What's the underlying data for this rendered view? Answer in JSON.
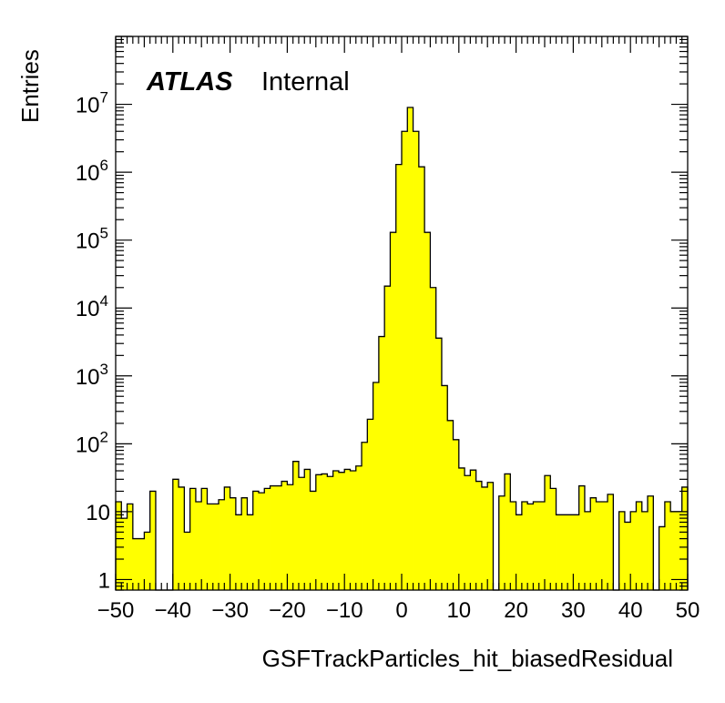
{
  "chart_data": {
    "type": "bar",
    "style": "histogram-step",
    "fill_color": "#ffff00",
    "line_color": "#000000",
    "x_range": [
      -50,
      50
    ],
    "y_range": [
      0.7,
      100000000
    ],
    "y_log": true,
    "bin_width": 1,
    "bins": [
      {
        "x": -50,
        "v": 14
      },
      {
        "x": -49,
        "v": 8
      },
      {
        "x": -48,
        "v": 13
      },
      {
        "x": -47,
        "v": 4
      },
      {
        "x": -46,
        "v": 4
      },
      {
        "x": -45,
        "v": 5
      },
      {
        "x": -44,
        "v": 20
      },
      {
        "x": -43,
        "v": 0
      },
      {
        "x": -42,
        "v": 0
      },
      {
        "x": -41,
        "v": 0
      },
      {
        "x": -40,
        "v": 30
      },
      {
        "x": -39,
        "v": 23
      },
      {
        "x": -38,
        "v": 5
      },
      {
        "x": -37,
        "v": 22
      },
      {
        "x": -36,
        "v": 14
      },
      {
        "x": -35,
        "v": 22
      },
      {
        "x": -34,
        "v": 13
      },
      {
        "x": -33,
        "v": 13
      },
      {
        "x": -32,
        "v": 15
      },
      {
        "x": -31,
        "v": 23
      },
      {
        "x": -30,
        "v": 16
      },
      {
        "x": -29,
        "v": 9
      },
      {
        "x": -28,
        "v": 16
      },
      {
        "x": -27,
        "v": 9
      },
      {
        "x": -26,
        "v": 20
      },
      {
        "x": -25,
        "v": 19
      },
      {
        "x": -24,
        "v": 22
      },
      {
        "x": -23,
        "v": 24
      },
      {
        "x": -22,
        "v": 24
      },
      {
        "x": -21,
        "v": 28
      },
      {
        "x": -20,
        "v": 25
      },
      {
        "x": -19,
        "v": 55
      },
      {
        "x": -18,
        "v": 32
      },
      {
        "x": -17,
        "v": 42
      },
      {
        "x": -16,
        "v": 20
      },
      {
        "x": -15,
        "v": 35
      },
      {
        "x": -14,
        "v": 36
      },
      {
        "x": -13,
        "v": 33
      },
      {
        "x": -12,
        "v": 40
      },
      {
        "x": -11,
        "v": 38
      },
      {
        "x": -10,
        "v": 42
      },
      {
        "x": -9,
        "v": 40
      },
      {
        "x": -8,
        "v": 47
      },
      {
        "x": -7,
        "v": 105
      },
      {
        "x": -6,
        "v": 230
      },
      {
        "x": -5,
        "v": 800
      },
      {
        "x": -4,
        "v": 3800
      },
      {
        "x": -3,
        "v": 21000
      },
      {
        "x": -2,
        "v": 130000
      },
      {
        "x": -1,
        "v": 1300000
      },
      {
        "x": 0,
        "v": 4000000
      },
      {
        "x": 1,
        "v": 9000000
      },
      {
        "x": 2,
        "v": 4000000
      },
      {
        "x": 3,
        "v": 1200000
      },
      {
        "x": 4,
        "v": 130000
      },
      {
        "x": 5,
        "v": 20000
      },
      {
        "x": 6,
        "v": 3600
      },
      {
        "x": 7,
        "v": 720
      },
      {
        "x": 8,
        "v": 220
      },
      {
        "x": 9,
        "v": 115
      },
      {
        "x": 10,
        "v": 44
      },
      {
        "x": 11,
        "v": 34
      },
      {
        "x": 12,
        "v": 41
      },
      {
        "x": 13,
        "v": 28
      },
      {
        "x": 14,
        "v": 23
      },
      {
        "x": 15,
        "v": 27
      },
      {
        "x": 16,
        "v": 0
      },
      {
        "x": 17,
        "v": 17
      },
      {
        "x": 18,
        "v": 36
      },
      {
        "x": 19,
        "v": 14
      },
      {
        "x": 20,
        "v": 9
      },
      {
        "x": 21,
        "v": 14
      },
      {
        "x": 22,
        "v": 13
      },
      {
        "x": 23,
        "v": 14
      },
      {
        "x": 24,
        "v": 14
      },
      {
        "x": 25,
        "v": 34
      },
      {
        "x": 26,
        "v": 22
      },
      {
        "x": 27,
        "v": 9
      },
      {
        "x": 28,
        "v": 9
      },
      {
        "x": 29,
        "v": 9
      },
      {
        "x": 30,
        "v": 9
      },
      {
        "x": 31,
        "v": 24
      },
      {
        "x": 32,
        "v": 10
      },
      {
        "x": 33,
        "v": 16
      },
      {
        "x": 34,
        "v": 14
      },
      {
        "x": 35,
        "v": 14
      },
      {
        "x": 36,
        "v": 18
      },
      {
        "x": 37,
        "v": 0
      },
      {
        "x": 38,
        "v": 10
      },
      {
        "x": 39,
        "v": 7
      },
      {
        "x": 40,
        "v": 10
      },
      {
        "x": 41,
        "v": 14
      },
      {
        "x": 42,
        "v": 10
      },
      {
        "x": 43,
        "v": 17
      },
      {
        "x": 44,
        "v": 0
      },
      {
        "x": 45,
        "v": 6
      },
      {
        "x": 46,
        "v": 14
      },
      {
        "x": 47,
        "v": 10
      },
      {
        "x": 48,
        "v": 10
      },
      {
        "x": 49,
        "v": 23
      }
    ],
    "x_ticks": [
      {
        "v": -50,
        "label": "−50"
      },
      {
        "v": -40,
        "label": "−40"
      },
      {
        "v": -30,
        "label": "−30"
      },
      {
        "v": -20,
        "label": "−20"
      },
      {
        "v": -10,
        "label": "−10"
      },
      {
        "v": 0,
        "label": "0"
      },
      {
        "v": 10,
        "label": "10"
      },
      {
        "v": 20,
        "label": "20"
      },
      {
        "v": 30,
        "label": "30"
      },
      {
        "v": 40,
        "label": "40"
      },
      {
        "v": 50,
        "label": "50"
      }
    ],
    "y_ticks": [
      {
        "v": 1,
        "base": "1",
        "exp": ""
      },
      {
        "v": 10,
        "base": "10",
        "exp": ""
      },
      {
        "v": 100,
        "base": "10",
        "exp": "2"
      },
      {
        "v": 1000,
        "base": "10",
        "exp": "3"
      },
      {
        "v": 10000,
        "base": "10",
        "exp": "4"
      },
      {
        "v": 100000,
        "base": "10",
        "exp": "5"
      },
      {
        "v": 1000000,
        "base": "10",
        "exp": "6"
      },
      {
        "v": 10000000,
        "base": "10",
        "exp": "7"
      }
    ],
    "xlabel": "GSFTrackParticles_hit_biasedResidual",
    "ylabel": "Entries",
    "label_atlas": "ATLAS",
    "label_status": "Internal"
  }
}
